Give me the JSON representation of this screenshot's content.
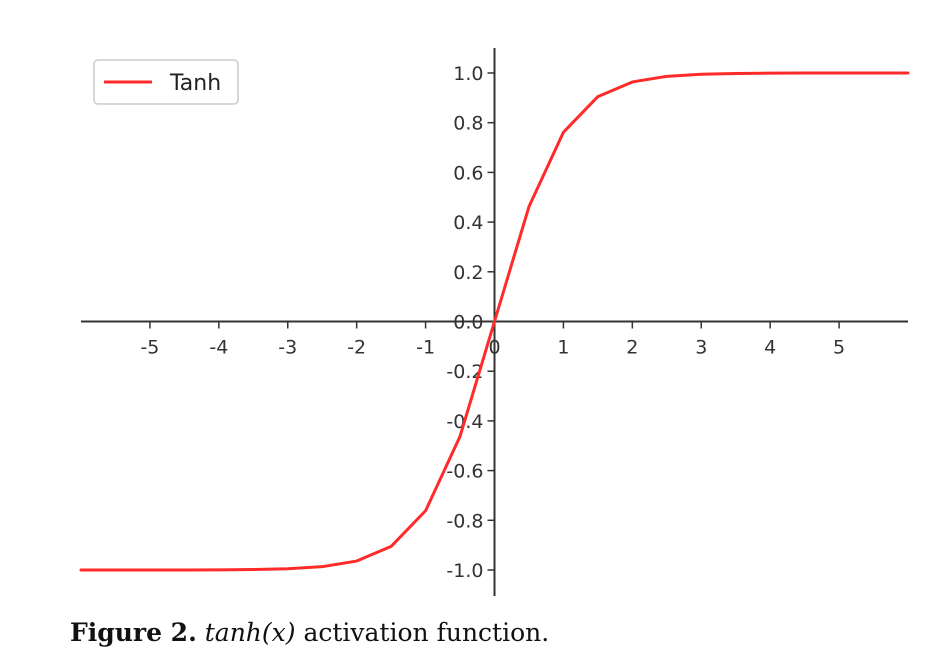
{
  "chart_data": {
    "type": "line",
    "title": "",
    "xlabel": "",
    "ylabel": "",
    "xlim": [
      -6,
      6
    ],
    "ylim": [
      -1.0,
      1.0
    ],
    "grid": false,
    "legend_position": "top-left",
    "x_ticks": [
      -5,
      -4,
      -3,
      -2,
      -1,
      0,
      1,
      2,
      3,
      4,
      5
    ],
    "x_tick_labels": [
      "-5",
      "-4",
      "-3",
      "-2",
      "-1",
      "0",
      "1",
      "2",
      "3",
      "4",
      "5"
    ],
    "y_ticks": [
      -1.0,
      -0.8,
      -0.6,
      -0.4,
      -0.2,
      0.0,
      0.2,
      0.4,
      0.6,
      0.8,
      1.0
    ],
    "y_tick_labels": [
      "-1.0",
      "-0.8",
      "-0.6",
      "-0.4",
      "-0.2",
      "0.0",
      "0.2",
      "0.4",
      "0.6",
      "0.8",
      "1.0"
    ],
    "series": [
      {
        "name": "Tanh",
        "color": "#ff2a2a",
        "function": "tanh",
        "x": [
          -6,
          -5.5,
          -5,
          -4.5,
          -4,
          -3.5,
          -3,
          -2.5,
          -2,
          -1.5,
          -1,
          -0.5,
          0,
          0.5,
          1,
          1.5,
          2,
          2.5,
          3,
          3.5,
          4,
          4.5,
          5,
          5.5,
          6
        ],
        "y": [
          -1.0,
          -1.0,
          -0.9999,
          -0.9998,
          -0.9993,
          -0.9982,
          -0.9951,
          -0.9866,
          -0.964,
          -0.9051,
          -0.7616,
          -0.4621,
          0.0,
          0.4621,
          0.7616,
          0.9051,
          0.964,
          0.9866,
          0.9951,
          0.9982,
          0.9993,
          0.9998,
          0.9999,
          1.0,
          1.0
        ]
      }
    ]
  },
  "caption": {
    "label": "Figure 2.",
    "math": "tanh(x)",
    "text": "activation function."
  },
  "colors": {
    "axis": "#333333",
    "line": "#ff2a2a",
    "legend_border": "#cccccc"
  }
}
